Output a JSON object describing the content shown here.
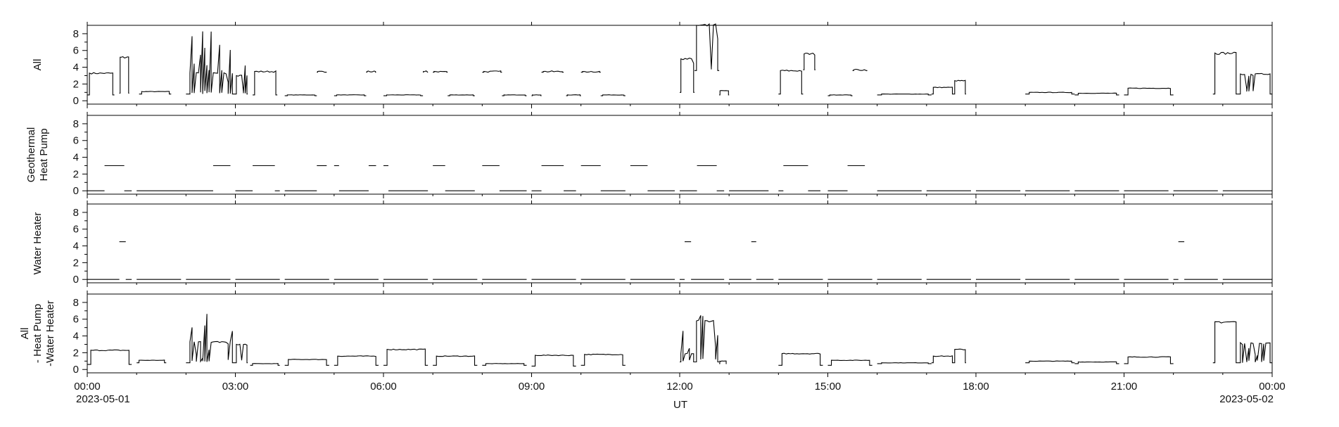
{
  "chart_data": [
    {
      "type": "line",
      "ylabel": "All",
      "ylim": [
        -0.4,
        9.0
      ],
      "yticks": [
        "0",
        "2",
        "4",
        "6",
        "8"
      ],
      "series": [
        {
          "blocks": [
            [
              0.0,
              0.55,
              0.7,
              3.3
            ],
            [
              0.65,
              0.85,
              0.9,
              5.2
            ],
            [
              1.05,
              1.7,
              0.8,
              1.1
            ],
            [
              2.0,
              3.0,
              0.8,
              3.3,
              1.0,
              9.0
            ],
            [
              3.0,
              3.25,
              0.8,
              3.0,
              1.0,
              6.2
            ],
            [
              3.35,
              3.85,
              0.7,
              3.5
            ],
            [
              4.0,
              4.65,
              0.6,
              0.7
            ],
            [
              4.65,
              4.85,
              3.4,
              3.5
            ],
            [
              5.0,
              5.65,
              0.6,
              0.7
            ],
            [
              5.65,
              5.85,
              3.4,
              3.5
            ],
            [
              6.0,
              6.8,
              0.6,
              0.7
            ],
            [
              6.8,
              6.9,
              3.4,
              3.5
            ],
            [
              7.0,
              7.3,
              3.4,
              3.5
            ],
            [
              7.3,
              7.85,
              0.6,
              0.7
            ],
            [
              8.0,
              8.4,
              3.4,
              3.5
            ],
            [
              8.4,
              8.9,
              0.6,
              0.7
            ],
            [
              9.0,
              9.2,
              0.6,
              0.7
            ],
            [
              9.2,
              9.65,
              3.4,
              3.5
            ],
            [
              9.7,
              10.0,
              0.6,
              0.7
            ],
            [
              10.0,
              10.4,
              3.4,
              3.5
            ],
            [
              10.4,
              10.9,
              0.6,
              0.7
            ],
            [
              12.0,
              12.3,
              1.0,
              5.0,
              1.0,
              8.0
            ],
            [
              12.3,
              12.8,
              3.6,
              9.0,
              1.0,
              9.0
            ],
            [
              12.8,
              13.0,
              0.7,
              1.2
            ],
            [
              14.0,
              14.5,
              0.8,
              3.6
            ],
            [
              14.5,
              14.75,
              3.7,
              5.6
            ],
            [
              15.0,
              15.5,
              0.6,
              0.7
            ],
            [
              15.5,
              15.8,
              3.6,
              3.7
            ],
            [
              16.0,
              17.1,
              0.7,
              0.8
            ],
            [
              17.1,
              17.55,
              0.8,
              1.6
            ],
            [
              17.55,
              17.8,
              0.8,
              2.4
            ],
            [
              19.0,
              20.0,
              0.8,
              1.0
            ],
            [
              20.0,
              20.9,
              0.7,
              0.9
            ],
            [
              21.0,
              22.0,
              0.7,
              1.5
            ],
            [
              22.8,
              23.3,
              0.8,
              5.7
            ],
            [
              23.3,
              24.0,
              0.8,
              3.2,
              1.0,
              3.3
            ]
          ]
        }
      ]
    },
    {
      "type": "line",
      "ylabel": "Geothermal\nHeat Pump",
      "ylim": [
        -0.4,
        9.0
      ],
      "yticks": [
        "0",
        "2",
        "4",
        "6",
        "8"
      ],
      "series": [
        {
          "blocks": [
            [
              0.0,
              0.35,
              0.0,
              0.0
            ],
            [
              0.35,
              0.75,
              3.0,
              3.0
            ],
            [
              0.75,
              0.9,
              0.0,
              0.0
            ],
            [
              1.0,
              2.0,
              0.0,
              0.0
            ],
            [
              2.0,
              2.55,
              0.0,
              0.0
            ],
            [
              2.55,
              2.9,
              3.0,
              3.0
            ],
            [
              3.0,
              3.35,
              0.0,
              0.0
            ],
            [
              3.35,
              3.8,
              3.0,
              3.0
            ],
            [
              3.8,
              3.9,
              0.0,
              0.0
            ],
            [
              4.0,
              4.65,
              0.0,
              0.0
            ],
            [
              4.65,
              4.85,
              3.0,
              3.0
            ],
            [
              5.0,
              5.1,
              3.0,
              3.0
            ],
            [
              5.1,
              5.7,
              0.0,
              0.0
            ],
            [
              5.7,
              5.85,
              3.0,
              3.0
            ],
            [
              6.0,
              6.1,
              3.0,
              3.0
            ],
            [
              6.1,
              6.9,
              0.0,
              0.0
            ],
            [
              7.0,
              7.25,
              3.0,
              3.0
            ],
            [
              7.25,
              7.85,
              0.0,
              0.0
            ],
            [
              8.0,
              8.35,
              3.0,
              3.0
            ],
            [
              8.35,
              8.9,
              0.0,
              0.0
            ],
            [
              9.0,
              9.2,
              0.0,
              0.0
            ],
            [
              9.2,
              9.65,
              3.0,
              3.0
            ],
            [
              9.65,
              9.9,
              0.0,
              0.0
            ],
            [
              10.0,
              10.4,
              3.0,
              3.0
            ],
            [
              10.4,
              10.9,
              0.0,
              0.0
            ],
            [
              11.0,
              11.35,
              3.0,
              3.0
            ],
            [
              11.35,
              11.9,
              0.0,
              0.0
            ],
            [
              12.0,
              12.35,
              0.0,
              0.0
            ],
            [
              12.35,
              12.75,
              3.0,
              3.0
            ],
            [
              12.75,
              12.9,
              0.0,
              0.0
            ],
            [
              13.0,
              13.8,
              0.0,
              0.0
            ],
            [
              14.0,
              14.1,
              0.0,
              0.0
            ],
            [
              14.1,
              14.6,
              3.0,
              3.0
            ],
            [
              14.6,
              14.85,
              0.0,
              0.0
            ],
            [
              15.0,
              15.4,
              0.0,
              0.0
            ],
            [
              15.4,
              15.75,
              3.0,
              3.0
            ],
            [
              16.0,
              16.9,
              0.0,
              0.0
            ],
            [
              17.0,
              17.9,
              0.0,
              0.0
            ],
            [
              18.0,
              18.9,
              0.0,
              0.0
            ],
            [
              19.0,
              19.9,
              0.0,
              0.0
            ],
            [
              20.0,
              20.9,
              0.0,
              0.0
            ],
            [
              21.0,
              21.9,
              0.0,
              0.0
            ],
            [
              22.0,
              22.9,
              0.0,
              0.0
            ],
            [
              23.0,
              24.0,
              0.0,
              0.0
            ]
          ]
        }
      ]
    },
    {
      "type": "line",
      "ylabel": "Water Heater",
      "ylim": [
        -0.4,
        9.0
      ],
      "yticks": [
        "0",
        "2",
        "4",
        "6",
        "8"
      ],
      "series": [
        {
          "blocks": [
            [
              0.0,
              0.65,
              0.0,
              0.0
            ],
            [
              0.65,
              0.78,
              4.5,
              4.5
            ],
            [
              0.78,
              0.9,
              0.0,
              0.0
            ],
            [
              1.0,
              1.9,
              0.0,
              0.0
            ],
            [
              2.0,
              2.9,
              0.0,
              0.0
            ],
            [
              3.0,
              3.9,
              0.0,
              0.0
            ],
            [
              4.0,
              4.9,
              0.0,
              0.0
            ],
            [
              5.0,
              5.9,
              0.0,
              0.0
            ],
            [
              6.0,
              6.9,
              0.0,
              0.0
            ],
            [
              7.0,
              7.9,
              0.0,
              0.0
            ],
            [
              8.0,
              8.9,
              0.0,
              0.0
            ],
            [
              9.0,
              9.9,
              0.0,
              0.0
            ],
            [
              10.0,
              10.9,
              0.0,
              0.0
            ],
            [
              11.0,
              11.9,
              0.0,
              0.0
            ],
            [
              12.0,
              12.1,
              0.0,
              0.0
            ],
            [
              12.1,
              12.23,
              4.5,
              4.5
            ],
            [
              12.23,
              12.9,
              0.0,
              0.0
            ],
            [
              13.0,
              13.45,
              0.0,
              0.0
            ],
            [
              13.45,
              13.55,
              4.5,
              4.5
            ],
            [
              13.55,
              13.9,
              0.0,
              0.0
            ],
            [
              14.0,
              14.9,
              0.0,
              0.0
            ],
            [
              15.0,
              15.9,
              0.0,
              0.0
            ],
            [
              16.0,
              16.9,
              0.0,
              0.0
            ],
            [
              17.0,
              17.9,
              0.0,
              0.0
            ],
            [
              18.0,
              18.9,
              0.0,
              0.0
            ],
            [
              19.0,
              19.9,
              0.0,
              0.0
            ],
            [
              20.0,
              20.9,
              0.0,
              0.0
            ],
            [
              21.0,
              21.9,
              0.0,
              0.0
            ],
            [
              22.0,
              22.1,
              0.0,
              0.0
            ],
            [
              22.1,
              22.22,
              4.5,
              4.5
            ],
            [
              22.22,
              22.9,
              0.0,
              0.0
            ],
            [
              23.0,
              24.0,
              0.0,
              0.0
            ]
          ]
        }
      ]
    },
    {
      "type": "line",
      "ylabel": "All\n- Heat Pump\n-Water Heater",
      "ylim": [
        -0.4,
        9.0
      ],
      "yticks": [
        "0",
        "2",
        "4",
        "6",
        "8"
      ],
      "series": [
        {
          "blocks": [
            [
              0.0,
              0.9,
              0.6,
              2.3
            ],
            [
              1.0,
              1.6,
              0.8,
              1.1
            ],
            [
              2.0,
              3.0,
              0.8,
              3.3,
              1.0,
              7.7
            ],
            [
              3.0,
              3.25,
              0.8,
              3.0,
              1.0,
              6.2
            ],
            [
              3.3,
              3.9,
              0.5,
              0.7
            ],
            [
              4.0,
              4.9,
              0.5,
              1.2
            ],
            [
              5.0,
              5.9,
              0.5,
              1.6
            ],
            [
              6.0,
              6.9,
              0.5,
              2.4
            ],
            [
              7.0,
              7.9,
              0.5,
              1.6
            ],
            [
              8.0,
              8.9,
              0.5,
              0.7
            ],
            [
              9.0,
              9.9,
              0.4,
              1.7
            ],
            [
              10.0,
              10.9,
              0.5,
              1.8
            ],
            [
              12.0,
              12.3,
              0.9,
              1.9,
              1.0,
              6.5
            ],
            [
              12.3,
              12.8,
              0.9,
              5.8,
              1.0,
              6.6
            ],
            [
              12.8,
              12.95,
              0.7,
              1.0
            ],
            [
              14.0,
              14.9,
              0.5,
              1.9
            ],
            [
              15.0,
              15.9,
              0.5,
              1.1
            ],
            [
              16.0,
              17.1,
              0.7,
              0.8
            ],
            [
              17.1,
              17.55,
              0.8,
              1.6
            ],
            [
              17.55,
              17.8,
              0.8,
              2.4
            ],
            [
              19.0,
              20.0,
              0.8,
              1.0
            ],
            [
              20.0,
              20.9,
              0.7,
              0.9
            ],
            [
              21.0,
              22.0,
              0.7,
              1.5
            ],
            [
              22.8,
              23.3,
              0.8,
              5.7
            ],
            [
              23.3,
              24.0,
              0.8,
              3.2,
              1.0,
              3.3
            ]
          ]
        }
      ]
    }
  ],
  "x_axis": {
    "tick_labels": [
      "00:00",
      "03:00",
      "06:00",
      "09:00",
      "12:00",
      "15:00",
      "18:00",
      "21:00",
      "00:00"
    ],
    "start_date": "2023-05-01",
    "end_date": "2023-05-02",
    "title": "UT"
  }
}
